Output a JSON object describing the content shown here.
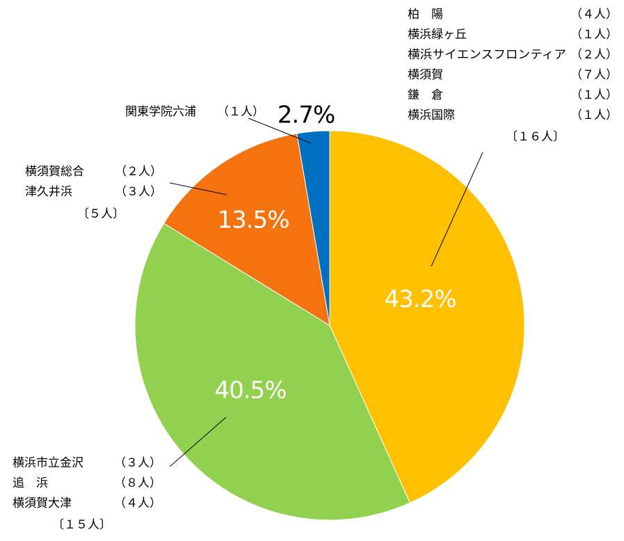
{
  "chart_data": {
    "type": "pie",
    "start_angle_deg": 0,
    "direction": "clockwise",
    "slices": [
      {
        "key": "yokohama-group",
        "value": 43.2,
        "percent_label": "43.2%",
        "color": "#FFC000",
        "label_dark": false,
        "schools": [
          {
            "name": "柏　陽",
            "count": "（４人）"
          },
          {
            "name": "横浜緑ヶ丘",
            "count": "（１人）"
          },
          {
            "name": "横浜サイエンスフロンティア",
            "count": "（２人）"
          },
          {
            "name": "横須賀",
            "count": "（７人）"
          },
          {
            "name": "鎌　倉",
            "count": "（１人）"
          },
          {
            "name": "横浜国際",
            "count": "（１人）"
          }
        ],
        "total": "〔１６人〕"
      },
      {
        "key": "kanazawa-group",
        "value": 40.5,
        "percent_label": "40.5%",
        "color": "#92D050",
        "label_dark": false,
        "schools": [
          {
            "name": "横浜市立金沢",
            "count": "（３人）"
          },
          {
            "name": "追　浜",
            "count": "（８人）"
          },
          {
            "name": "横須賀大津",
            "count": "（４人）"
          }
        ],
        "total": "〔１５人〕"
      },
      {
        "key": "sogo-group",
        "value": 13.5,
        "percent_label": "13.5%",
        "color": "#F4730F",
        "label_dark": false,
        "schools": [
          {
            "name": "横須賀総合",
            "count": "（２人）"
          },
          {
            "name": "津久井浜",
            "count": "（３人）"
          }
        ],
        "total": "〔５人〕"
      },
      {
        "key": "kanto-gakuin",
        "value": 2.7,
        "percent_label": "2.7%",
        "color": "#0070C0",
        "label_dark": true,
        "schools": [
          {
            "name": "関東学院六浦",
            "count": "（１人）"
          }
        ],
        "total": ""
      }
    ]
  }
}
